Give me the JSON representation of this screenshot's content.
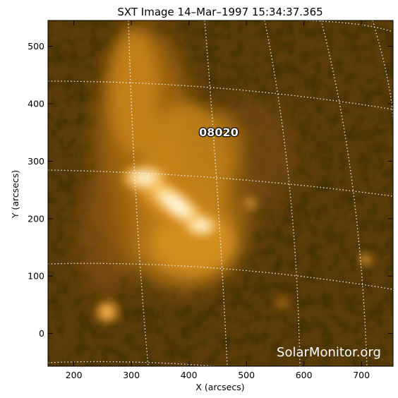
{
  "title": "SXT Image 14–Mar–1997 15:34:37.365",
  "axes": {
    "xlabel": "X (arcsecs)",
    "ylabel": "Y (arcsecs)",
    "xlim": [
      155,
      755
    ],
    "ylim": [
      -57,
      545
    ],
    "xticks": [
      200,
      300,
      400,
      500,
      600,
      700
    ],
    "yticks": [
      0,
      100,
      200,
      300,
      400,
      500
    ]
  },
  "active_region_label": "08020",
  "watermark": "SolarMonitor.org",
  "colors": {
    "background": "#5a3a08",
    "emission": "#d9901a",
    "core": "#ffffff",
    "grid": "#ffffff"
  }
}
